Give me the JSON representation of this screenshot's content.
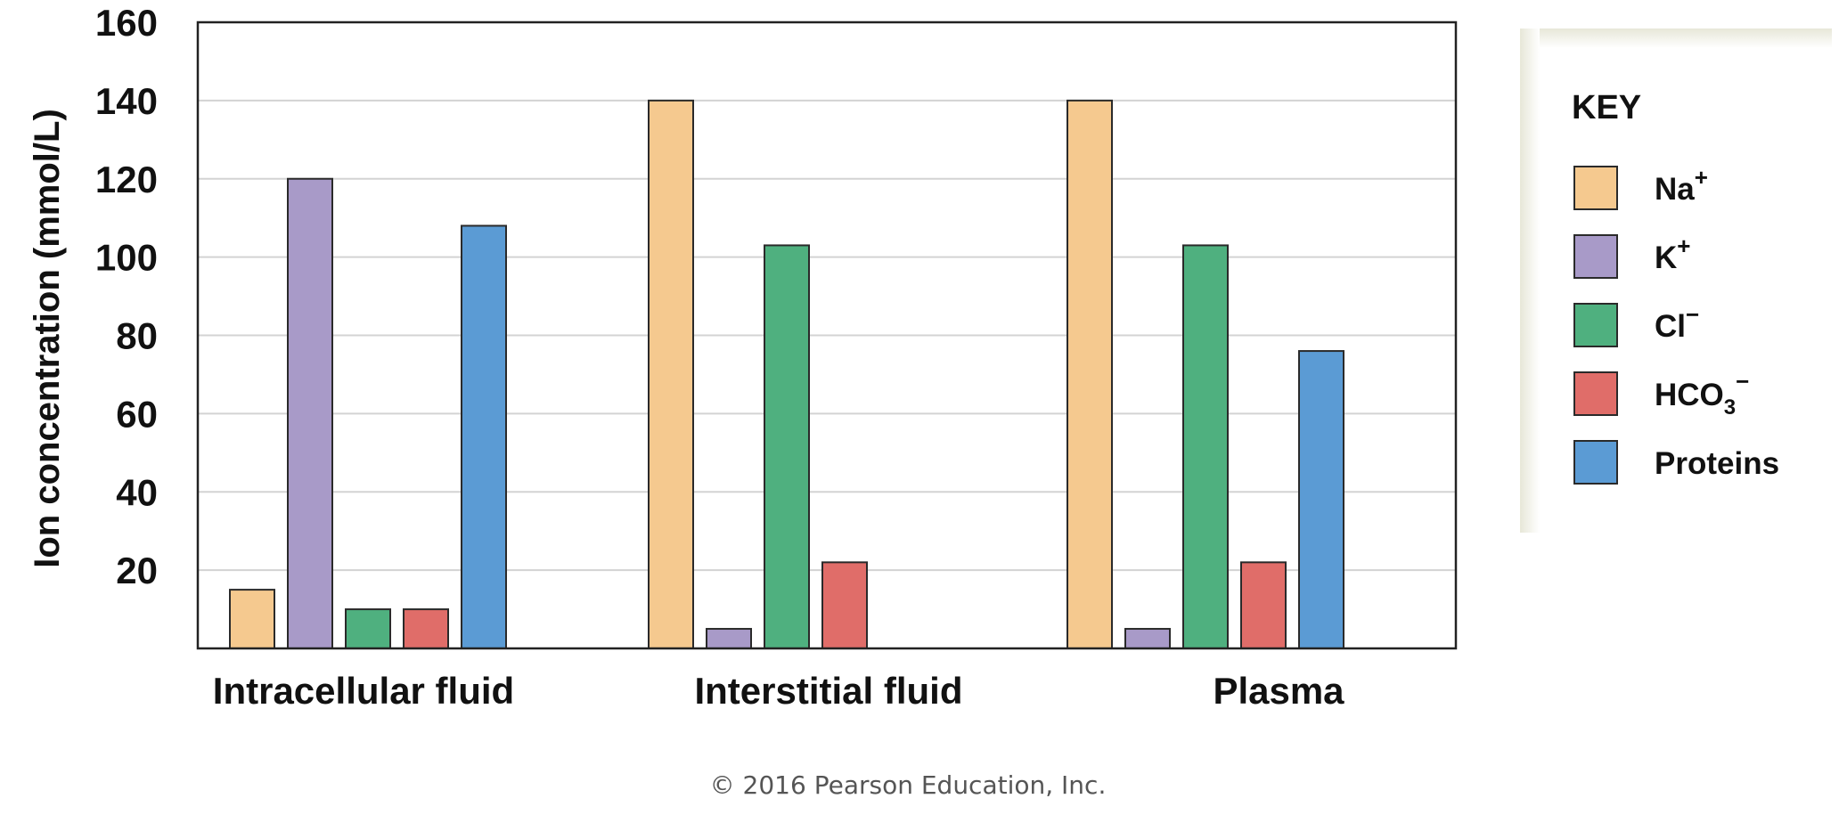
{
  "chart_data": {
    "type": "bar",
    "ylabel": "Ion concentration (mmol/L)",
    "xlabel": "",
    "ylim": [
      0,
      160
    ],
    "yticks": [
      20,
      40,
      60,
      80,
      100,
      120,
      140,
      160
    ],
    "grid": true,
    "legend_position": "right",
    "categories": [
      "Intracellular fluid",
      "Interstitial fluid",
      "Plasma"
    ],
    "series": [
      {
        "name": "Na",
        "sup": "+",
        "sub": "",
        "color": "#f5c98f",
        "values": [
          15,
          140,
          140
        ]
      },
      {
        "name": "K",
        "sup": "+",
        "sub": "",
        "color": "#a89ac8",
        "values": [
          120,
          5,
          5
        ]
      },
      {
        "name": "Cl",
        "sup": "−",
        "sub": "",
        "color": "#4fb07f",
        "values": [
          10,
          103,
          103
        ]
      },
      {
        "name": "HCO",
        "sup": "−",
        "sub": "3",
        "color": "#e06d69",
        "values": [
          10,
          22,
          22
        ]
      },
      {
        "name": "Proteins",
        "sup": "",
        "sub": "",
        "color": "#5b9bd4",
        "values": [
          108,
          null,
          76
        ]
      }
    ]
  },
  "legend": {
    "title": "KEY"
  },
  "footer": {
    "copyright": "© 2016 Pearson Education, Inc."
  }
}
